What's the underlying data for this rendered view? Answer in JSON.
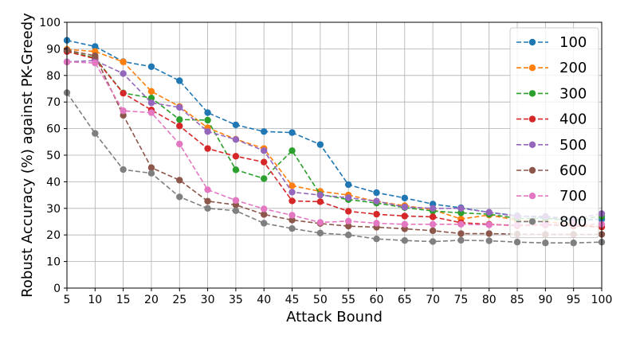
{
  "chart_data": {
    "type": "line",
    "xlabel": "Attack Bound",
    "ylabel": "Robust Accuracy (%) against PK-Greedy",
    "xlim": [
      5,
      100
    ],
    "ylim": [
      0,
      100
    ],
    "grid": true,
    "legend_position": "top-right",
    "x": [
      5,
      10,
      15,
      20,
      25,
      30,
      35,
      40,
      45,
      50,
      55,
      60,
      65,
      70,
      75,
      80,
      85,
      90,
      95,
      100
    ],
    "x_ticks": [
      "5",
      "10",
      "15",
      "20",
      "25",
      "30",
      "35",
      "40",
      "45",
      "50",
      "55",
      "60",
      "65",
      "70",
      "75",
      "80",
      "85",
      "90",
      "95",
      "100"
    ],
    "y_ticks": [
      "0",
      "10",
      "20",
      "30",
      "40",
      "50",
      "60",
      "70",
      "80",
      "90",
      "100"
    ],
    "series": [
      {
        "name": "100",
        "color": "#1f77b4",
        "values": [
          93.2,
          90.9,
          85.2,
          83.3,
          78.0,
          66.0,
          61.4,
          58.9,
          58.5,
          54.0,
          38.9,
          35.9,
          33.9,
          31.6,
          30.2,
          28.5,
          27.2,
          26.5,
          25.5,
          25.9
        ]
      },
      {
        "name": "200",
        "color": "#ff7f0e",
        "values": [
          89.8,
          89.0,
          85.1,
          74.0,
          68.3,
          60.3,
          56.0,
          52.5,
          38.5,
          36.4,
          35.0,
          32.6,
          31.0,
          29.5,
          26.0,
          27.5,
          25.5,
          25.0,
          24.0,
          23.0
        ]
      },
      {
        "name": "300",
        "color": "#2ca02c",
        "values": [
          89.2,
          86.6,
          73.4,
          71.5,
          63.4,
          63.2,
          44.5,
          41.2,
          51.7,
          35.2,
          33.3,
          32.0,
          30.3,
          29.0,
          28.3,
          27.8,
          26.2,
          26.2,
          25.5,
          27.0
        ]
      },
      {
        "name": "400",
        "color": "#d62728",
        "values": [
          89.0,
          86.3,
          73.3,
          67.0,
          61.0,
          52.5,
          49.6,
          47.4,
          32.8,
          32.5,
          28.9,
          27.8,
          27.1,
          26.8,
          24.6,
          24.0,
          23.5,
          23.8,
          23.4,
          23.0
        ]
      },
      {
        "name": "500",
        "color": "#9467bd",
        "values": [
          85.1,
          85.6,
          80.7,
          69.7,
          68.0,
          58.9,
          55.9,
          51.7,
          36.1,
          35.0,
          34.0,
          32.7,
          30.5,
          30.0,
          30.0,
          28.5,
          27.0,
          27.0,
          26.0,
          28.0
        ]
      },
      {
        "name": "600",
        "color": "#8c564b",
        "values": [
          89.5,
          87.4,
          65.0,
          45.3,
          40.6,
          32.7,
          31.3,
          27.7,
          25.6,
          24.3,
          23.3,
          22.9,
          22.3,
          21.6,
          20.5,
          20.5,
          20.3,
          20.2,
          20.2,
          20.2
        ]
      },
      {
        "name": "700",
        "color": "#e377c2",
        "values": [
          85.1,
          84.7,
          66.7,
          66.0,
          54.2,
          37.0,
          33.0,
          29.8,
          27.4,
          24.7,
          25.2,
          24.4,
          24.0,
          24.0,
          24.0,
          23.8,
          23.8,
          24.0,
          23.9,
          24.0
        ]
      },
      {
        "name": "800",
        "color": "#7f7f7f",
        "values": [
          73.5,
          58.2,
          44.6,
          43.2,
          34.3,
          30.0,
          29.1,
          24.4,
          22.4,
          20.7,
          20.0,
          18.5,
          17.9,
          17.5,
          18.0,
          17.8,
          17.3,
          17.0,
          17.0,
          17.3
        ]
      }
    ]
  }
}
